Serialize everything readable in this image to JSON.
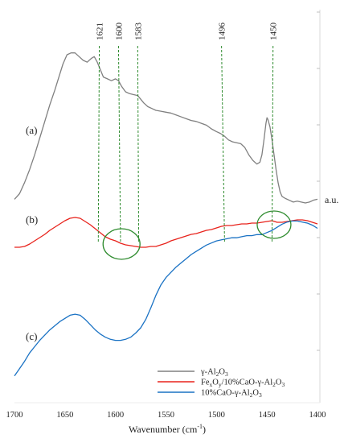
{
  "chart_data": {
    "type": "line",
    "xlabel": "Wavenumber (cm",
    "xlabel_sup": "-1",
    "xlabel_close": ")",
    "ylabel": "a.u.",
    "xlim": [
      1700,
      1400
    ],
    "x_reversed": true,
    "grid": false,
    "x_ticks": [
      1700,
      1650,
      1600,
      1550,
      1500,
      1450,
      1400
    ],
    "peak_lines": [
      {
        "label": "1621",
        "x_top": 1616,
        "x_bottom": 1617
      },
      {
        "label": "1600",
        "x_top": 1597,
        "x_bottom": 1595
      },
      {
        "label": "1583",
        "x_top": 1578,
        "x_bottom": 1577
      },
      {
        "label": "1496",
        "x_top": 1495,
        "x_bottom": 1492
      },
      {
        "label": "1450",
        "x_top": 1444,
        "x_bottom": 1445
      }
    ],
    "highlight_circles": [
      {
        "x": 1594
      },
      {
        "x": 1443
      }
    ],
    "curve_labels": [
      {
        "text": "(a)",
        "series": 0
      },
      {
        "text": "(b)",
        "series": 1
      },
      {
        "text": "(c)",
        "series": 2
      }
    ],
    "series": [
      {
        "name_parts": [
          [
            "γ-Al",
            ""
          ],
          [
            "2",
            "sub"
          ],
          [
            "O",
            ""
          ],
          [
            "3",
            "sub"
          ]
        ],
        "color": "#808080",
        "x": [
          1700,
          1695,
          1690,
          1685,
          1680,
          1675,
          1670,
          1665,
          1660,
          1656,
          1652,
          1648,
          1644,
          1640,
          1636,
          1632,
          1628,
          1624,
          1621,
          1618,
          1615,
          1612,
          1608,
          1604,
          1600,
          1597,
          1594,
          1590,
          1586,
          1582,
          1578,
          1575,
          1572,
          1568,
          1564,
          1560,
          1555,
          1550,
          1545,
          1540,
          1535,
          1530,
          1525,
          1520,
          1515,
          1510,
          1505,
          1500,
          1496,
          1492,
          1488,
          1484,
          1480,
          1476,
          1472,
          1468,
          1464,
          1460,
          1457,
          1455,
          1453,
          1451,
          1450,
          1449,
          1447,
          1445,
          1443,
          1441,
          1439,
          1437,
          1435,
          1432,
          1428,
          1424,
          1420,
          1416,
          1412,
          1408,
          1404,
          1400
        ],
        "y": [
          0.2,
          0.5,
          1.1,
          1.8,
          2.6,
          3.5,
          4.4,
          5.3,
          6.1,
          6.8,
          7.5,
          8.0,
          8.1,
          8.1,
          7.9,
          7.7,
          7.6,
          7.8,
          7.9,
          7.6,
          7.2,
          6.8,
          6.7,
          6.6,
          6.7,
          6.6,
          6.3,
          6.0,
          5.9,
          5.85,
          5.8,
          5.6,
          5.4,
          5.2,
          5.1,
          5.0,
          4.95,
          4.9,
          4.85,
          4.75,
          4.65,
          4.55,
          4.45,
          4.4,
          4.3,
          4.2,
          4.0,
          3.85,
          3.75,
          3.6,
          3.4,
          3.3,
          3.25,
          3.2,
          3.0,
          2.6,
          2.3,
          2.1,
          2.2,
          2.6,
          3.4,
          4.3,
          4.6,
          4.5,
          4.1,
          3.4,
          2.6,
          1.8,
          1.1,
          0.6,
          0.35,
          0.25,
          0.15,
          0.05,
          0.1,
          0.05,
          0.0,
          0.05,
          0.15,
          0.2
        ]
      },
      {
        "name_parts": [
          [
            "Fe",
            ""
          ],
          [
            "x",
            "sub"
          ],
          [
            "O",
            ""
          ],
          [
            "y",
            "sub"
          ],
          [
            "/10%CaO-γ-Al",
            ""
          ],
          [
            "2",
            "sub"
          ],
          [
            "O",
            ""
          ],
          [
            "3",
            "sub"
          ]
        ],
        "color": "#e8231c",
        "x": [
          1700,
          1695,
          1690,
          1685,
          1680,
          1675,
          1670,
          1665,
          1660,
          1655,
          1650,
          1645,
          1640,
          1635,
          1630,
          1625,
          1620,
          1615,
          1610,
          1605,
          1600,
          1595,
          1590,
          1585,
          1580,
          1575,
          1570,
          1565,
          1560,
          1555,
          1550,
          1545,
          1540,
          1535,
          1530,
          1525,
          1520,
          1515,
          1510,
          1505,
          1500,
          1495,
          1490,
          1485,
          1480,
          1475,
          1470,
          1465,
          1460,
          1455,
          1450,
          1445,
          1440,
          1435,
          1430,
          1425,
          1420,
          1415,
          1410,
          1405,
          1400
        ],
        "y": [
          -1.1,
          -1.1,
          -1.05,
          -0.9,
          -0.7,
          -0.5,
          -0.3,
          -0.05,
          0.15,
          0.35,
          0.55,
          0.7,
          0.75,
          0.7,
          0.5,
          0.3,
          0.05,
          -0.2,
          -0.45,
          -0.6,
          -0.7,
          -0.85,
          -0.95,
          -1.0,
          -1.05,
          -1.1,
          -1.1,
          -1.05,
          -1.05,
          -0.95,
          -0.85,
          -0.7,
          -0.6,
          -0.5,
          -0.4,
          -0.3,
          -0.25,
          -0.15,
          -0.05,
          0.0,
          0.1,
          0.2,
          0.25,
          0.25,
          0.3,
          0.35,
          0.35,
          0.4,
          0.4,
          0.45,
          0.5,
          0.55,
          0.45,
          0.45,
          0.5,
          0.55,
          0.6,
          0.6,
          0.55,
          0.45,
          0.35
        ]
      },
      {
        "name_parts": [
          [
            "10%CaO-γ-Al",
            ""
          ],
          [
            "2",
            "sub"
          ],
          [
            "O",
            ""
          ],
          [
            "3",
            "sub"
          ]
        ],
        "color": "#1a72c4",
        "x": [
          1700,
          1695,
          1690,
          1685,
          1680,
          1675,
          1670,
          1665,
          1660,
          1655,
          1650,
          1645,
          1640,
          1635,
          1630,
          1625,
          1620,
          1615,
          1610,
          1605,
          1600,
          1595,
          1590,
          1585,
          1580,
          1575,
          1570,
          1565,
          1560,
          1555,
          1550,
          1545,
          1540,
          1535,
          1530,
          1525,
          1520,
          1515,
          1510,
          1505,
          1500,
          1495,
          1490,
          1485,
          1480,
          1475,
          1470,
          1465,
          1460,
          1455,
          1450,
          1445,
          1440,
          1435,
          1430,
          1425,
          1420,
          1415,
          1410,
          1405,
          1400
        ],
        "y": [
          -7.3,
          -6.95,
          -6.6,
          -6.2,
          -5.9,
          -5.6,
          -5.35,
          -5.1,
          -4.9,
          -4.7,
          -4.55,
          -4.4,
          -4.35,
          -4.4,
          -4.6,
          -4.85,
          -5.1,
          -5.3,
          -5.45,
          -5.55,
          -5.6,
          -5.6,
          -5.55,
          -5.45,
          -5.25,
          -5.0,
          -4.6,
          -4.05,
          -3.45,
          -2.95,
          -2.6,
          -2.35,
          -2.1,
          -1.9,
          -1.7,
          -1.5,
          -1.35,
          -1.2,
          -1.05,
          -0.95,
          -0.85,
          -0.8,
          -0.75,
          -0.7,
          -0.7,
          -0.65,
          -0.6,
          -0.6,
          -0.55,
          -0.55,
          -0.45,
          -0.35,
          -0.2,
          -0.05,
          0.05,
          0.1,
          0.1,
          0.05,
          0.0,
          -0.1,
          -0.25
        ]
      }
    ]
  }
}
